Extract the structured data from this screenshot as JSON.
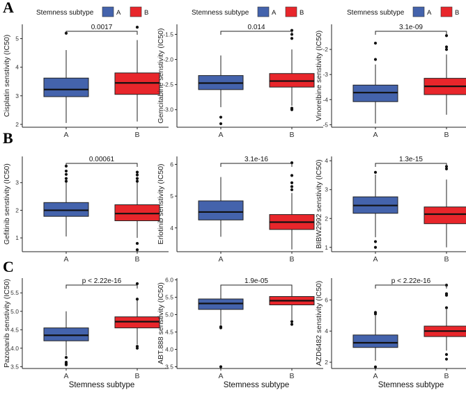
{
  "figure": {
    "panel_labels": [
      "A",
      "B",
      "C"
    ],
    "colors": {
      "A": "#4463AC",
      "B": "#E8262B"
    }
  },
  "chart_data": [
    {
      "type": "box",
      "title": "",
      "panel": "A",
      "ylabel": "Cisplatin senstivity (IC50)",
      "legend": {
        "title": "Stemness subtype",
        "entries": [
          "A",
          "B"
        ]
      },
      "xlabel": "",
      "categories": [
        "A",
        "B"
      ],
      "ylim": [
        1.9,
        5.5
      ],
      "yticks": [
        2,
        3,
        4,
        5
      ],
      "ytick_labels": [
        "2",
        "3",
        "4",
        "5"
      ],
      "pvalue": "0.0017",
      "boxes": [
        {
          "q1": 2.97,
          "median": 3.22,
          "q3": 3.62,
          "whisker_low": 2.05,
          "whisker_high": 4.6,
          "outliers": [
            5.19
          ]
        },
        {
          "q1": 3.05,
          "median": 3.45,
          "q3": 3.8,
          "whisker_low": 2.1,
          "whisker_high": 4.95,
          "outliers": [
            5.4
          ]
        }
      ]
    },
    {
      "type": "box",
      "title": "",
      "panel": "A",
      "ylabel": "Gemcitabine senstivity (IC50)",
      "legend": {
        "title": "Stemness subtype",
        "entries": [
          "A",
          "B"
        ]
      },
      "xlabel": "",
      "categories": [
        "A",
        "B"
      ],
      "ylim": [
        -3.35,
        -1.3
      ],
      "yticks": [
        -1.5,
        -2.0,
        -2.5,
        -3.0
      ],
      "ytick_labels": [
        "-1.5",
        "-2.0",
        "-2.5",
        "-3.0"
      ],
      "pvalue": "0.014",
      "boxes": [
        {
          "q1": -2.6,
          "median": -2.47,
          "q3": -2.32,
          "whisker_low": -2.95,
          "whisker_high": -1.92,
          "outliers": [
            -3.15,
            -3.28
          ]
        },
        {
          "q1": -2.55,
          "median": -2.43,
          "q3": -2.28,
          "whisker_low": -2.92,
          "whisker_high": -1.8,
          "outliers": [
            -1.58,
            -1.5,
            -1.42,
            -2.97,
            -3.0
          ]
        }
      ]
    },
    {
      "type": "box",
      "title": "",
      "panel": "A",
      "ylabel": "Vinorelbine senstivity (IC50)",
      "legend": {
        "title": "Stemness subtype",
        "entries": [
          "A",
          "B"
        ]
      },
      "xlabel": "",
      "categories": [
        "A",
        "B"
      ],
      "ylim": [
        -5.1,
        -1.0
      ],
      "yticks": [
        -2,
        -3,
        -4,
        -5
      ],
      "ytick_labels": [
        "-2",
        "-3",
        "-4",
        "-5"
      ],
      "pvalue": "3.1e-09",
      "boxes": [
        {
          "q1": -4.08,
          "median": -3.72,
          "q3": -3.42,
          "whisker_low": -4.95,
          "whisker_high": -2.6,
          "outliers": [
            -1.75,
            -2.4
          ]
        },
        {
          "q1": -3.8,
          "median": -3.47,
          "q3": -3.15,
          "whisker_low": -4.6,
          "whisker_high": -2.2,
          "outliers": [
            -1.45,
            -1.9,
            -2.0
          ]
        }
      ]
    },
    {
      "type": "box",
      "title": "",
      "panel": "B",
      "ylabel": "Gefitinib senstivity (IC50)",
      "xlabel": "",
      "categories": [
        "A",
        "B"
      ],
      "ylim": [
        0.5,
        3.95
      ],
      "yticks": [
        1,
        2,
        3
      ],
      "ytick_labels": [
        "1",
        "2",
        "3"
      ],
      "pvalue": "0.00061",
      "boxes": [
        {
          "q1": 1.78,
          "median": 2.0,
          "q3": 2.28,
          "whisker_low": 1.05,
          "whisker_high": 3.0,
          "outliers": [
            3.05,
            3.15,
            3.3,
            3.42,
            3.6
          ]
        },
        {
          "q1": 1.62,
          "median": 1.88,
          "q3": 2.2,
          "whisker_low": 1.0,
          "whisker_high": 3.0,
          "outliers": [
            3.05,
            3.15,
            3.28,
            3.38,
            0.57,
            0.8
          ]
        }
      ]
    },
    {
      "type": "box",
      "title": "",
      "panel": "B",
      "ylabel": "Erlotinib senstivity (IC50)",
      "xlabel": "",
      "categories": [
        "A",
        "B"
      ],
      "ylim": [
        3.25,
        6.25
      ],
      "yticks": [
        4,
        5,
        6
      ],
      "ytick_labels": [
        "4",
        "5",
        "6"
      ],
      "pvalue": "3.1e-16",
      "boxes": [
        {
          "q1": 4.25,
          "median": 4.5,
          "q3": 4.85,
          "whisker_low": 3.72,
          "whisker_high": 5.6,
          "outliers": []
        },
        {
          "q1": 3.95,
          "median": 4.18,
          "q3": 4.42,
          "whisker_low": 3.32,
          "whisker_high": 5.1,
          "outliers": [
            5.2,
            5.3,
            5.42,
            5.65,
            6.05
          ]
        }
      ]
    },
    {
      "type": "box",
      "title": "",
      "panel": "B",
      "ylabel": "BIBW2992 senstivity (IC50)",
      "xlabel": "",
      "categories": [
        "A",
        "B"
      ],
      "ylim": [
        0.85,
        4.15
      ],
      "yticks": [
        1,
        2,
        3,
        4
      ],
      "ytick_labels": [
        "1",
        "2",
        "3",
        "4"
      ],
      "pvalue": "1.3e-15",
      "boxes": [
        {
          "q1": 2.18,
          "median": 2.45,
          "q3": 2.75,
          "whisker_low": 1.35,
          "whisker_high": 3.52,
          "outliers": [
            3.6,
            1.2,
            1.0
          ]
        },
        {
          "q1": 1.82,
          "median": 2.15,
          "q3": 2.4,
          "whisker_low": 1.0,
          "whisker_high": 3.35,
          "outliers": [
            3.72,
            3.8
          ]
        }
      ]
    },
    {
      "type": "box",
      "title": "",
      "panel": "C",
      "ylabel": "Pazopanib senstivity (IC50)",
      "xlabel": "Stemness subtype",
      "categories": [
        "A",
        "B"
      ],
      "ylim": [
        3.45,
        5.9
      ],
      "yticks": [
        3.5,
        4.0,
        4.5,
        5.0,
        5.5
      ],
      "ytick_labels": [
        "3.5",
        "4.0",
        "4.5",
        "5.0",
        "5.5"
      ],
      "pvalue": "p < 2.22e-16",
      "boxes": [
        {
          "q1": 4.2,
          "median": 4.35,
          "q3": 4.55,
          "whisker_low": 3.8,
          "whisker_high": 5.0,
          "outliers": [
            3.75,
            3.62,
            3.58,
            3.55
          ]
        },
        {
          "q1": 4.55,
          "median": 4.72,
          "q3": 4.85,
          "whisker_low": 4.1,
          "whisker_high": 5.3,
          "outliers": [
            5.33,
            5.75,
            4.05,
            4.0
          ]
        }
      ]
    },
    {
      "type": "box",
      "title": "",
      "panel": "C",
      "ylabel": "ABT.888 senstivity (IC50)",
      "xlabel": "Stemness subtype",
      "categories": [
        "A",
        "B"
      ],
      "ylim": [
        3.45,
        6.05
      ],
      "yticks": [
        3.5,
        4.0,
        4.5,
        5.0,
        5.5,
        6.0
      ],
      "ytick_labels": [
        "3.5",
        "4.0",
        "4.5",
        "5.0",
        "5.5",
        "6.0"
      ],
      "pvalue": "1.9e-05",
      "boxes": [
        {
          "q1": 5.15,
          "median": 5.32,
          "q3": 5.45,
          "whisker_low": 4.7,
          "whisker_high": 5.75,
          "outliers": [
            4.65,
            4.62,
            3.5
          ]
        },
        {
          "q1": 5.28,
          "median": 5.4,
          "q3": 5.52,
          "whisker_low": 4.85,
          "whisker_high": 5.8,
          "outliers": [
            4.8,
            4.72
          ]
        }
      ]
    },
    {
      "type": "box",
      "title": "",
      "panel": "C",
      "ylabel": "AZD6482 senstivity (IC50)",
      "xlabel": "Stemness subtype",
      "categories": [
        "A",
        "B"
      ],
      "ylim": [
        1.6,
        7.4
      ],
      "yticks": [
        2,
        4,
        6
      ],
      "ytick_labels": [
        "2",
        "4",
        "6"
      ],
      "pvalue": "p < 2.22e-16",
      "boxes": [
        {
          "q1": 2.95,
          "median": 3.25,
          "q3": 3.75,
          "whisker_low": 2.1,
          "whisker_high": 5.0,
          "outliers": [
            5.1,
            5.2,
            1.7
          ]
        },
        {
          "q1": 3.65,
          "median": 4.0,
          "q3": 4.32,
          "whisker_low": 2.75,
          "whisker_high": 5.4,
          "outliers": [
            5.5,
            6.3,
            6.4,
            6.95,
            2.5,
            2.2
          ]
        }
      ]
    }
  ]
}
